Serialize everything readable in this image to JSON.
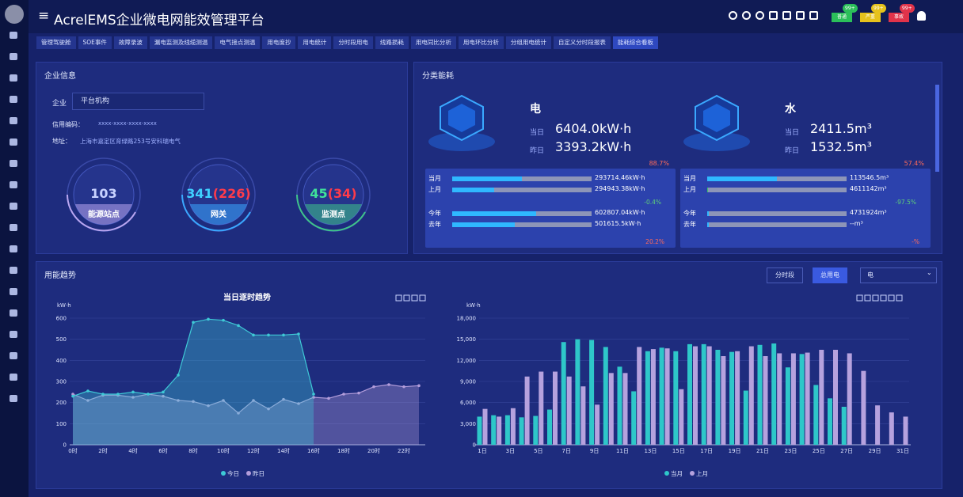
{
  "header": {
    "title": "AcrelEMS企业微电网能效管理平台",
    "alarms": [
      {
        "count": "99+",
        "label": "普通"
      },
      {
        "count": "99+",
        "label": "严重"
      },
      {
        "count": "99+",
        "label": "事故"
      }
    ]
  },
  "tabs": [
    "管理驾驶舱",
    "SOE事件",
    "故障录波",
    "漏电监测及线缆测温",
    "电气接点测温",
    "用电度抄",
    "用电统计",
    "分时段用电",
    "线路损耗",
    "用电同比分析",
    "用电环比分析",
    "分组用电统计",
    "自定义分时段报表",
    "能耗综合看板"
  ],
  "enterprise": {
    "title": "企业信息",
    "field_label": "企业",
    "field_value": "平台机构",
    "credit_label": "信用编码：",
    "credit_value": "xxxx-xxxx-xxxx-xxxx",
    "address_label": "地址：",
    "address_value": "上海市嘉定区育绿路253号安科瑞电气",
    "stats": [
      {
        "value": "103",
        "sub": null,
        "label": "能源站点"
      },
      {
        "value": "341",
        "sub": "(226)",
        "label": "网关"
      },
      {
        "value": "45",
        "sub": "(34)",
        "label": "监测点"
      }
    ]
  },
  "energy": {
    "title": "分类能耗",
    "items": [
      {
        "name": "电",
        "today_label": "当日",
        "today": "6404.0kW·h",
        "yesterday_label": "昨日",
        "yesterday": "3393.2kW·h",
        "day_change": "88.7%",
        "rows": [
          {
            "label": "当月",
            "value": "293714.46kW·h"
          },
          {
            "label": "上月",
            "value": "294943.38kW·h"
          },
          {
            "label": "今年",
            "value": "602807.04kW·h"
          },
          {
            "label": "去年",
            "value": "501615.5kW·h"
          }
        ],
        "month_change": "-0.4%",
        "year_change": "20.2%"
      },
      {
        "name": "水",
        "today_label": "当日",
        "today": "2411.5m³",
        "yesterday_label": "昨日",
        "yesterday": "1532.5m³",
        "day_change": "57.4%",
        "rows": [
          {
            "label": "当月",
            "value": "113546.5m³"
          },
          {
            "label": "上月",
            "value": "4611142m³"
          },
          {
            "label": "今年",
            "value": "4731924m³"
          },
          {
            "label": "去年",
            "value": "--m³"
          }
        ],
        "month_change": "-97.5%",
        "year_change": "-%"
      }
    ]
  },
  "trend": {
    "title": "用能趋势",
    "buttons": [
      "分时段",
      "总用电"
    ],
    "select": "电"
  },
  "line_chart": {
    "type": "line",
    "title": "当日逐时趋势",
    "y_label": "kW·h",
    "categories": [
      "0时",
      null,
      "2时",
      null,
      "4时",
      null,
      "6时",
      null,
      "8时",
      null,
      "10时",
      null,
      "12时",
      null,
      "14时",
      null,
      "16时",
      null,
      "18时",
      null,
      "20时",
      null,
      "22时",
      null
    ],
    "series": [
      {
        "name": "今日",
        "color": "#3ec9d6",
        "values": [
          230,
          255,
          240,
          240,
          250,
          240,
          250,
          330,
          580,
          595,
          590,
          565,
          520,
          520,
          520,
          525,
          240,
          null,
          null,
          null,
          null,
          null,
          null,
          null
        ]
      },
      {
        "name": "昨日",
        "color": "#b39ddb",
        "values": [
          240,
          210,
          235,
          235,
          225,
          240,
          230,
          210,
          205,
          185,
          210,
          150,
          210,
          170,
          215,
          195,
          225,
          220,
          240,
          245,
          275,
          285,
          275,
          280
        ]
      }
    ],
    "ylim": [
      0,
      600
    ],
    "yticks": [
      0,
      100,
      200,
      300,
      400,
      500,
      600
    ],
    "grid": true
  },
  "bar_chart": {
    "type": "bar",
    "y_label": "kW·h",
    "categories": [
      "1日",
      null,
      "3日",
      null,
      "5日",
      null,
      "7日",
      null,
      "9日",
      null,
      "11日",
      null,
      "13日",
      null,
      "15日",
      null,
      "17日",
      null,
      "19日",
      null,
      "21日",
      null,
      "23日",
      null,
      "25日",
      null,
      "27日",
      null,
      "29日",
      null,
      "31日"
    ],
    "series": [
      {
        "name": "当月",
        "color": "#2ec7c9",
        "values": [
          4000,
          4200,
          4200,
          3900,
          4100,
          5000,
          14600,
          15000,
          14900,
          13900,
          11100,
          7600,
          13300,
          13800,
          13300,
          14300,
          14300,
          13500,
          13200,
          7700,
          14200,
          14400,
          11000,
          12900,
          8500,
          6600,
          5400,
          null,
          null,
          null,
          null
        ]
      },
      {
        "name": "上月",
        "color": "#b6a2de",
        "values": [
          5100,
          4000,
          5200,
          9700,
          10400,
          10400,
          9700,
          8300,
          5700,
          10200,
          10200,
          13900,
          13600,
          13700,
          7900,
          14000,
          14000,
          12600,
          13300,
          14000,
          12600,
          13000,
          13000,
          13100,
          13500,
          13500,
          13000,
          10500,
          5600,
          4600,
          4000
        ]
      }
    ],
    "ylim": [
      0,
      18000
    ],
    "yticks": [
      0,
      {
        "value": 3000,
        "label": "3,000"
      },
      {
        "value": 6000,
        "label": "6,000"
      },
      {
        "value": 9000,
        "label": "9,000"
      },
      {
        "value": 12000,
        "label": "12,000"
      },
      {
        "value": 15000,
        "label": "15,000"
      },
      {
        "value": 18000,
        "label": "18,000"
      }
    ],
    "grid": true
  }
}
